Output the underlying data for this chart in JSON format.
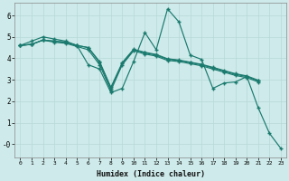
{
  "xlabel": "Humidex (Indice chaleur)",
  "bg_color": "#ceeaea",
  "line_color": "#1a7a6e",
  "xlim": [
    -0.5,
    23.5
  ],
  "ylim": [
    -0.6,
    6.6
  ],
  "xtick_labels": [
    "0",
    "1",
    "2",
    "3",
    "4",
    "5",
    "6",
    "7",
    "8",
    "9",
    "10",
    "11",
    "12",
    "13",
    "14",
    "15",
    "16",
    "17",
    "18",
    "19",
    "20",
    "21",
    "22",
    "23"
  ],
  "ytick_labels": [
    "-0",
    "1",
    "2",
    "3",
    "4",
    "5",
    "6"
  ],
  "yticks": [
    0,
    1,
    2,
    3,
    4,
    5,
    6
  ],
  "series": [
    {
      "x": [
        0,
        1,
        2,
        3,
        4,
        5,
        6,
        7,
        8,
        9,
        10,
        11,
        12,
        13,
        14,
        15,
        16,
        17,
        18,
        19,
        20,
        21,
        22,
        23
      ],
      "y": [
        4.6,
        4.8,
        5.0,
        4.9,
        4.8,
        4.6,
        3.7,
        3.5,
        2.4,
        2.6,
        3.85,
        5.2,
        4.4,
        6.3,
        5.7,
        4.15,
        3.95,
        2.6,
        2.85,
        2.9,
        3.15,
        1.7,
        0.5,
        -0.2
      ]
    },
    {
      "x": [
        0,
        1,
        2,
        3,
        4,
        5,
        6,
        7,
        8,
        9,
        10,
        11,
        12,
        13,
        14,
        15,
        16,
        17,
        18,
        19,
        20,
        21
      ],
      "y": [
        4.6,
        4.65,
        4.85,
        4.75,
        4.7,
        4.55,
        4.4,
        3.7,
        2.5,
        3.7,
        4.35,
        4.2,
        4.1,
        3.9,
        3.85,
        3.75,
        3.65,
        3.5,
        3.35,
        3.2,
        3.1,
        2.9
      ]
    },
    {
      "x": [
        0,
        1,
        2,
        3,
        4,
        5,
        6,
        7,
        8,
        9,
        10,
        11,
        12,
        13,
        14,
        15,
        16,
        17,
        18,
        19,
        20,
        21
      ],
      "y": [
        4.6,
        4.65,
        4.85,
        4.8,
        4.75,
        4.6,
        4.5,
        3.8,
        2.6,
        3.75,
        4.4,
        4.25,
        4.15,
        3.95,
        3.9,
        3.8,
        3.7,
        3.55,
        3.4,
        3.25,
        3.15,
        2.95
      ]
    },
    {
      "x": [
        0,
        1,
        2,
        3,
        4,
        5,
        6,
        7,
        8,
        9,
        10,
        11,
        12,
        13,
        14,
        15,
        16,
        17,
        18,
        19,
        20,
        21
      ],
      "y": [
        4.6,
        4.65,
        4.85,
        4.8,
        4.75,
        4.6,
        4.5,
        3.85,
        2.65,
        3.8,
        4.42,
        4.28,
        4.18,
        3.98,
        3.92,
        3.82,
        3.72,
        3.58,
        3.43,
        3.28,
        3.18,
        2.98
      ]
    }
  ]
}
